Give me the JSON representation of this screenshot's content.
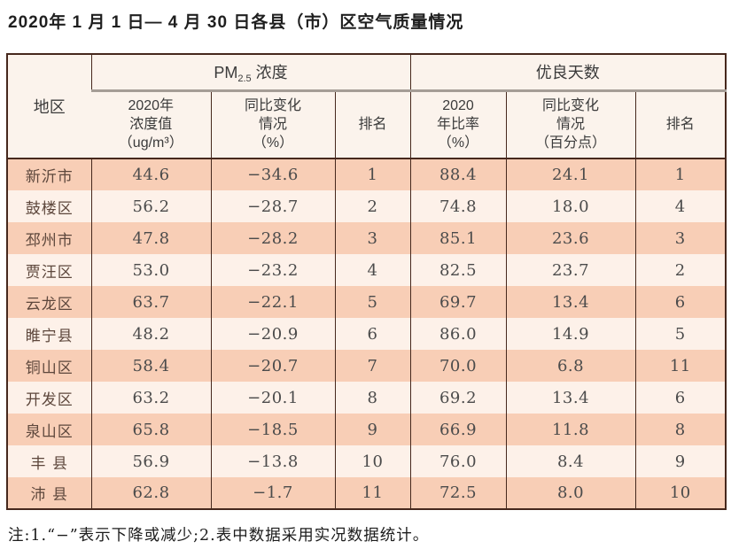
{
  "title": "2020年 1 月 1 日— 4 月 30 日各县（市）区空气质量情况",
  "table": {
    "headers": {
      "region": "地区",
      "pm25": {
        "prefix": "PM",
        "sub": "2.5",
        "suffix": "浓度"
      },
      "good_days": "优良天数",
      "sub_pm_value": "2020年\n浓度值\n（ug/m³）",
      "sub_pm_change": "同比变化\n情况\n（%）",
      "sub_pm_rank": "排名",
      "sub_gd_rate": "2020\n年比率\n（%）",
      "sub_gd_change": "同比变化\n情况\n（百分点）",
      "sub_gd_rank": "排名"
    },
    "rows": [
      {
        "region": "新沂市",
        "values": [
          "44.6",
          "−34.6",
          "1",
          "88.4",
          "24.1",
          "1"
        ]
      },
      {
        "region": "鼓楼区",
        "values": [
          "56.2",
          "−28.7",
          "2",
          "74.8",
          "18.0",
          "4"
        ]
      },
      {
        "region": "邳州市",
        "values": [
          "47.8",
          "−28.2",
          "3",
          "85.1",
          "23.6",
          "3"
        ]
      },
      {
        "region": "贾汪区",
        "values": [
          "53.0",
          "−23.2",
          "4",
          "82.5",
          "23.7",
          "2"
        ]
      },
      {
        "region": "云龙区",
        "values": [
          "63.7",
          "−22.1",
          "5",
          "69.7",
          "13.4",
          "6"
        ]
      },
      {
        "region": "睢宁县",
        "values": [
          "48.2",
          "−20.9",
          "6",
          "86.0",
          "14.9",
          "5"
        ]
      },
      {
        "region": "铜山区",
        "values": [
          "58.4",
          "−20.7",
          "7",
          "70.0",
          "6.8",
          "11"
        ]
      },
      {
        "region": "开发区",
        "values": [
          "63.2",
          "−20.1",
          "8",
          "69.2",
          "13.4",
          "6"
        ]
      },
      {
        "region": "泉山区",
        "values": [
          "65.8",
          "−18.5",
          "9",
          "66.9",
          "11.8",
          "8"
        ]
      },
      {
        "region": "丰 县",
        "values": [
          "56.9",
          "−13.8",
          "10",
          "76.0",
          "8.4",
          "9"
        ]
      },
      {
        "region": "沛 县",
        "values": [
          "62.8",
          "−1.7",
          "11",
          "72.5",
          "8.0",
          "10"
        ]
      }
    ]
  },
  "footnote": "注:1.“−”表示下降或减少;2.表中数据采用实况数据统计。",
  "colors": {
    "row_odd": "#f8ceb6",
    "row_even": "#fdf1e9",
    "header_bg": "#fbf3ec",
    "border": "#46281d",
    "header_divider": "#a59d96"
  }
}
